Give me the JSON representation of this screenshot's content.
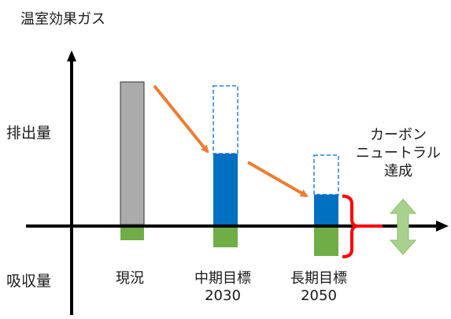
{
  "title": "温室効果ガス",
  "y_labels": {
    "emission": "排出量",
    "absorption": "吸収量"
  },
  "x_labels": {
    "current": "現況",
    "mid_term": "中期目標",
    "mid_term_year": "2030",
    "long_term": "長期目標",
    "long_term_year": "2050"
  },
  "annotation": {
    "line1": "カーボン",
    "line2": "ニュートラル",
    "line3": "達成"
  },
  "colors": {
    "current_emission": "#ababab",
    "target_emission": "#0070c0",
    "reduced_outline": "#2e7dd4",
    "absorption": "#70ad47",
    "arrow": "#ed7d31",
    "brace": "#ff0000",
    "equal_arrow": "#a9d18e",
    "axis": "#000000"
  }
}
